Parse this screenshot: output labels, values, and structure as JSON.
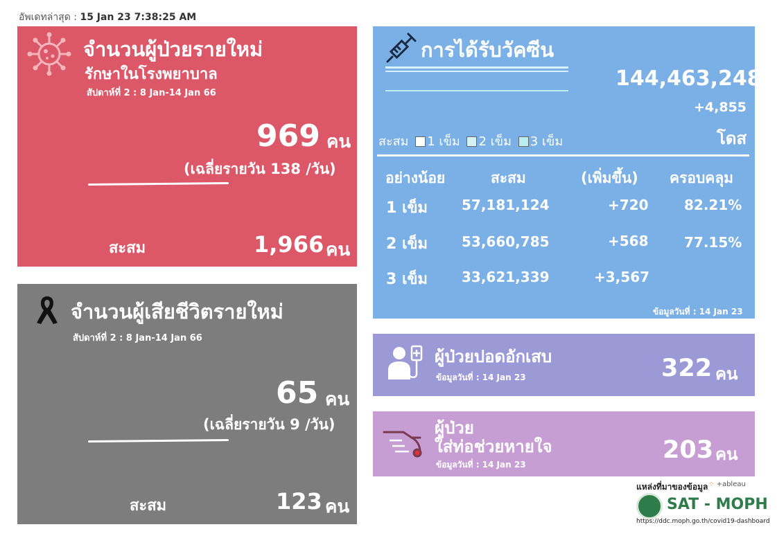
{
  "updated": {
    "label": "อัพเดทล่าสุด :",
    "value": "15 Jan 23 7:38:25 AM"
  },
  "new_cases": {
    "title": "จำนวนผู้ป่วยรายใหม่",
    "subtitle": "รักษาในโรงพยาบาล",
    "week": "สัปดาห์ที่ 2 : 8 Jan-14 Jan 66",
    "value": "969",
    "unit": "คน",
    "average": "(เฉลี่ยรายวัน 138 /วัน)",
    "accum_label": "สะสม",
    "accum_value": "1,966",
    "accum_unit": "คน"
  },
  "deaths": {
    "title": "จำนวนผู้เสียชีวิตรายใหม่",
    "week": "สัปดาห์ที่  2 : 8 Jan-14 Jan 66",
    "value": "65",
    "unit": "คน",
    "average": "(เฉลี่ยรายวัน 9 /วัน)",
    "accum_label": "สะสม",
    "accum_value": "123",
    "accum_unit": "คน"
  },
  "vaccine": {
    "title": "การได้รับวัคซีน",
    "total": "144,463,248",
    "increase": "+4,855",
    "unit": "โดส",
    "legend": {
      "prefix": "สะสม",
      "dose1": "1 เข็ม",
      "dose2": "2 เข็ม",
      "dose3": "3 เข็ม"
    },
    "headers": [
      "อย่างน้อย",
      "สะสม",
      "(เพิ่มขึ้น)",
      "ครอบคลุม"
    ],
    "rows": [
      {
        "dose": "1 เข็ม",
        "accum": "57,181,124",
        "inc": "+720",
        "coverage": "82.21%"
      },
      {
        "dose": "2 เข็ม",
        "accum": "53,660,785",
        "inc": "+568",
        "coverage": "77.15%"
      },
      {
        "dose": "3 เข็ม",
        "accum": "33,621,339",
        "inc": "+3,567",
        "coverage": ""
      }
    ],
    "as_of": "ข้อมูลวันที่ : 14 Jan 23",
    "colors": {
      "dose1": "#ffffff",
      "dose2": "#d6f3f3",
      "dose3": "#b8f0f0"
    }
  },
  "pneumonia": {
    "title": "ผู้ป่วยปอดอักเสบ",
    "as_of": "ข้อมูลวันที่ : 14 Jan 23",
    "value": "322",
    "unit": "คน"
  },
  "ventilator": {
    "title_line1": "ผู้ป่วย",
    "title_line2": "ใส่ท่อช่วยหายใจ",
    "as_of": "ข้อมูลวันที่ : 14 Jan 23",
    "value": "203",
    "unit": "คน"
  },
  "source": {
    "label": "แหล่งที่มาของข้อมูล",
    "tableau": "+ableau",
    "org": "SAT - MOPH",
    "url": "https://ddc.moph.go.th/covid19-dashboard"
  },
  "icons": {
    "virus": "virus-icon",
    "ribbon": "mourning-ribbon-icon",
    "syringe": "syringe-icon",
    "patient": "patient-iv-icon",
    "ventilator": "ventilator-icon"
  },
  "theme": {
    "new_cases_bg": "#dc5868",
    "deaths_bg": "#7d7d7d",
    "vaccine_bg": "#7ab0e6",
    "pneumonia_bg": "#9c9ad6",
    "ventilator_bg": "#c79ed4",
    "moph_green": "#2e7c49"
  }
}
